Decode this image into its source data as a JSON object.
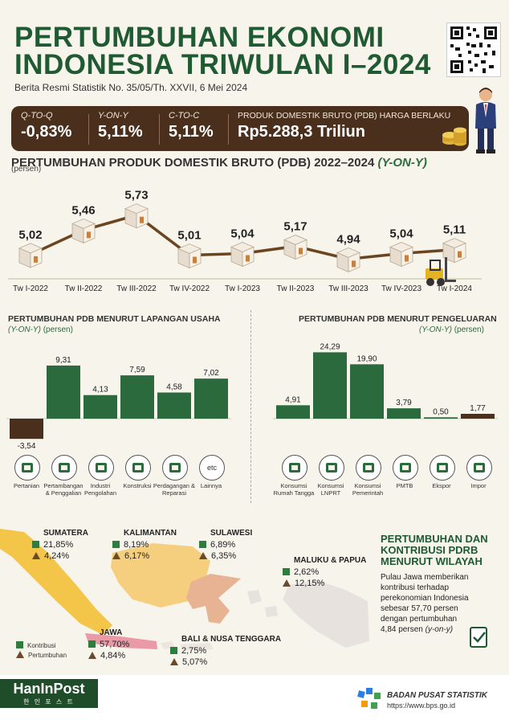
{
  "header": {
    "title_line1": "PERTUMBUHAN EKONOMI",
    "title_line2": "INDONESIA TRIWULAN I–2024",
    "subtitle": "Berita Resmi Statistik No. 35/05/Th. XXVII, 6 Mei 2024"
  },
  "stats": {
    "qtoq_label": "Q-TO-Q",
    "qtoq_value": "-0,83%",
    "yony_label": "Y-ON-Y",
    "yony_value": "5,11%",
    "ctoc_label": "C-TO-C",
    "ctoc_value": "5,11%",
    "pdb_label": "PRODUK DOMESTIK BRUTO (PDB) HARGA BERLAKU",
    "pdb_value": "Rp5.288,3 Triliun"
  },
  "colors": {
    "green_dark": "#1f5a32",
    "green_bar": "#2a6a3c",
    "brown": "#4a2f1c",
    "line_brown": "#6b4520"
  },
  "chart_data": [
    {
      "type": "line",
      "title": "PERTUMBUHAN PRODUK DOMESTIK BRUTO (PDB) 2022–2024",
      "title_suffix": "(Y-ON-Y)",
      "ylabel": "(persen)",
      "categories": [
        "Tw I-2022",
        "Tw II-2022",
        "Tw III-2022",
        "Tw IV-2022",
        "Tw I-2023",
        "Tw II-2023",
        "Tw III-2023",
        "Tw IV-2023",
        "Tw I-2024"
      ],
      "values": [
        5.02,
        5.46,
        5.73,
        5.01,
        5.04,
        5.17,
        4.94,
        5.04,
        5.11
      ],
      "labels": [
        "5,02",
        "5,46",
        "5,73",
        "5,01",
        "5,04",
        "5,17",
        "4,94",
        "5,04",
        "5,11"
      ],
      "ylim": [
        4.7,
        6.0
      ]
    },
    {
      "type": "bar",
      "title": "PERTUMBUHAN PDB MENURUT LAPANGAN USAHA",
      "subtitle_italic": "(Y-ON-Y)",
      "subtitle": "(persen)",
      "categories": [
        "Pertanian",
        "Pertambangan & Penggalian",
        "Industri Pengolahan",
        "Konstruksi",
        "Perdagangan & Reparasi",
        "Lainnya"
      ],
      "values": [
        -3.54,
        9.31,
        4.13,
        7.59,
        4.58,
        7.02
      ],
      "labels": [
        "-3,54",
        "9,31",
        "4,13",
        "7,59",
        "4,58",
        "7,02"
      ],
      "ylim": [
        -4,
        10
      ]
    },
    {
      "type": "bar",
      "title": "PERTUMBUHAN PDB MENURUT PENGELUARAN",
      "subtitle_italic": "(Y-ON-Y)",
      "subtitle": "(persen)",
      "categories": [
        "Konsumsi Rumah Tangga",
        "Konsumsi LNPRT",
        "Konsumsi Pemerintah",
        "PMTB",
        "Ekspor",
        "Impor"
      ],
      "values": [
        4.91,
        24.29,
        19.9,
        3.79,
        0.5,
        1.77
      ],
      "labels": [
        "4,91",
        "24,29",
        "19,90",
        "3,79",
        "0,50",
        "1,77"
      ],
      "ylim": [
        0,
        25
      ]
    }
  ],
  "icons": {
    "lapangan": [
      "leaf-icon",
      "mining-icon",
      "factory-icon",
      "truck-icon",
      "handshake-icon",
      "etc-icon"
    ],
    "pengeluaran": [
      "family-icon",
      "person-icon",
      "government-icon",
      "crane-icon",
      "ship-icon",
      "container-icon"
    ],
    "etc_text": "etc"
  },
  "regions": {
    "title_line1": "PERTUMBUHAN DAN",
    "title_line2": "KONTRIBUSI PDRB",
    "title_line3": "MENURUT WILAYAH",
    "description_1": "Pulau Jawa memberikan",
    "description_2": "kontribusi terhadap",
    "description_3": "perekonomian Indonesia",
    "description_4": "sebesar 57,70 persen",
    "description_5": "dengan pertumbuhan",
    "description_6": "4,84 persen",
    "description_6_italic": "(y-on-y)",
    "legend_kontribusi": "Kontribusi",
    "legend_pertumbuhan": "Pertumbuhan",
    "items": [
      {
        "name": "SUMATERA",
        "kontribusi": "21,85%",
        "pertumbuhan": "4,24%"
      },
      {
        "name": "KALIMANTAN",
        "kontribusi": "8,19%",
        "pertumbuhan": "6,17%"
      },
      {
        "name": "SULAWESI",
        "kontribusi": "6,89%",
        "pertumbuhan": "6,35%"
      },
      {
        "name": "MALUKU & PAPUA",
        "kontribusi": "2,62%",
        "pertumbuhan": "12,15%"
      },
      {
        "name": "JAWA",
        "kontribusi": "57,70%",
        "pertumbuhan": "4,84%"
      },
      {
        "name": "BALI & NUSA TENGGARA",
        "kontribusi": "2,75%",
        "pertumbuhan": "5,07%"
      }
    ]
  },
  "footer": {
    "hanin_logo": "HanInPost",
    "hanin_sub": "한 인 포 스 트",
    "bps_name": "BADAN PUSAT STATISTIK",
    "bps_url": "https://www.bps.go.id"
  }
}
